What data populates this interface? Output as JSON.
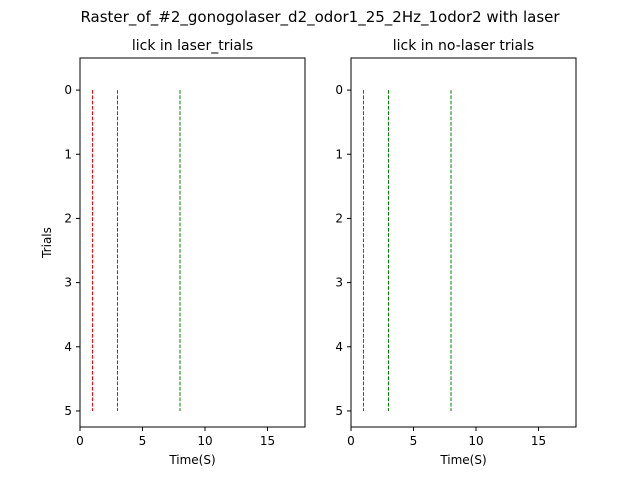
{
  "suptitle": "Raster_of_#2_gonogolaser_d2_odor1_25_2Hz_1odor2 with laser",
  "chart_data": [
    {
      "type": "raster",
      "title": "lick in laser_trials",
      "xlabel": "Time(S)",
      "ylabel": "Trials",
      "xlim": [
        0,
        18
      ],
      "ylim": [
        5.25,
        -0.5
      ],
      "xticks": [
        0,
        5,
        10,
        15
      ],
      "yticks": [
        0,
        1,
        2,
        3,
        4,
        5
      ],
      "events": [],
      "vlines": [
        {
          "x": 1,
          "y_from": 0,
          "y_to": 5,
          "color": "#ff0000",
          "style": "dashed"
        },
        {
          "x": 3,
          "y_from": 0,
          "y_to": 5,
          "color": "#008000",
          "style": "dashed"
        },
        {
          "x": 8,
          "y_from": 0,
          "y_to": 5,
          "color": "#008000",
          "style": "dashed"
        }
      ]
    },
    {
      "type": "raster",
      "title": "lick in no-laser trials",
      "xlabel": "Time(S)",
      "ylabel": "",
      "xlim": [
        0,
        18
      ],
      "ylim": [
        5.25,
        -0.5
      ],
      "xticks": [
        0,
        5,
        10,
        15
      ],
      "yticks": [
        0,
        1,
        2,
        3,
        4,
        5
      ],
      "events": [],
      "vlines": [
        {
          "x": 1,
          "y_from": 0,
          "y_to": 5,
          "color": "#ff0000",
          "style": "dashed"
        },
        {
          "x": 3,
          "y_from": 0,
          "y_to": 5,
          "color": "#008000",
          "style": "dashed"
        },
        {
          "x": 8,
          "y_from": 0,
          "y_to": 5,
          "color": "#008000",
          "style": "dashed"
        }
      ]
    }
  ]
}
